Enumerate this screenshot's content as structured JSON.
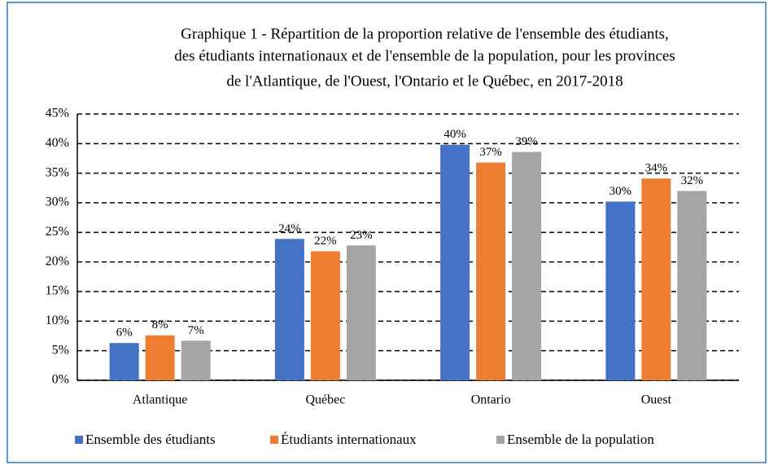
{
  "chart_data": {
    "type": "bar",
    "title": [
      "Graphique 1 - Répartition de la proportion relative de l'ensemble des étudiants,",
      "des étudiants internationaux et de l'ensemble de la population, pour les provinces",
      "de l'Atlantique, de l'Ouest, l'Ontario et le Québec, en 2017-2018"
    ],
    "categories": [
      "Atlantique",
      "Québec",
      "Ontario",
      "Ouest"
    ],
    "series": [
      {
        "name": "Ensemble des étudiants",
        "color": "#4472c4",
        "values": [
          6.3,
          23.9,
          39.8,
          30.2
        ],
        "value_labels": [
          "6%",
          "24%",
          "40%",
          "30%"
        ]
      },
      {
        "name": "Étudiants internationaux",
        "color": "#ed7d31",
        "values": [
          7.6,
          21.8,
          36.8,
          34.1
        ],
        "value_labels": [
          "8%",
          "22%",
          "37%",
          "34%"
        ]
      },
      {
        "name": "Ensemble de la population",
        "color": "#a5a5a5",
        "values": [
          6.7,
          22.8,
          38.6,
          32.0
        ],
        "value_labels": [
          "7%",
          "23%",
          "39%",
          "32%"
        ]
      }
    ],
    "ylim": [
      0,
      45
    ],
    "yticks": [
      {
        "value": 0,
        "label": "0%"
      },
      {
        "value": 5,
        "label": "5%"
      },
      {
        "value": 10,
        "label": "10%"
      },
      {
        "value": 15,
        "label": "15%"
      },
      {
        "value": 20,
        "label": "20%"
      },
      {
        "value": 25,
        "label": "25%"
      },
      {
        "value": 30,
        "label": "30%"
      },
      {
        "value": 35,
        "label": "35%"
      },
      {
        "value": 40,
        "label": "40%"
      },
      {
        "value": 45,
        "label": "45%"
      }
    ],
    "grid": true,
    "legend": "bottom"
  }
}
